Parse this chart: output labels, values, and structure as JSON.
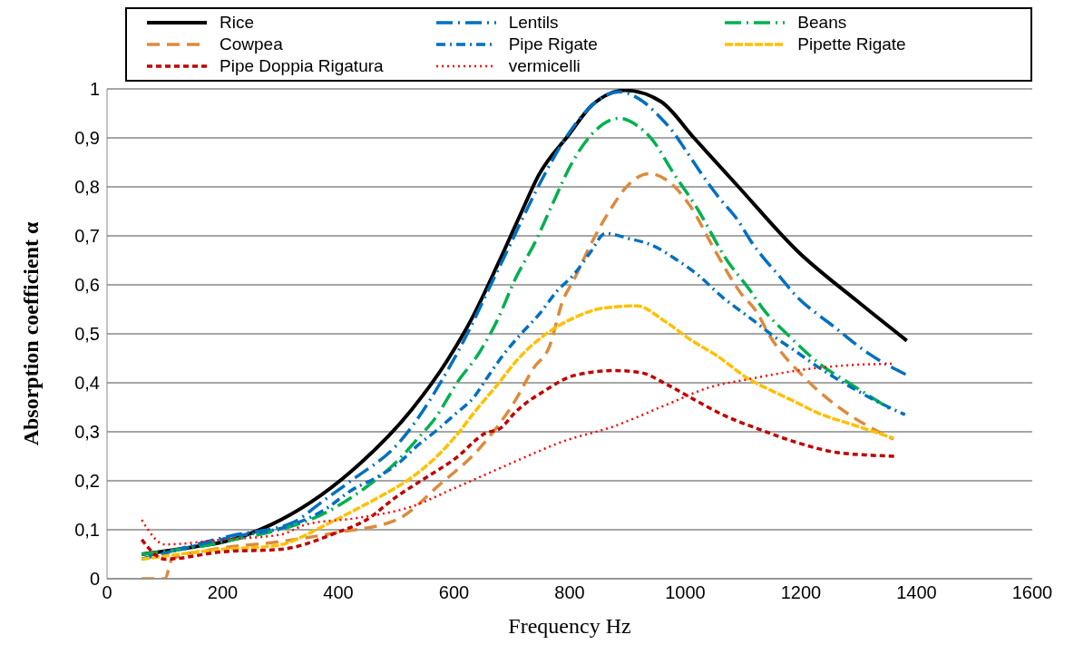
{
  "chart_data": {
    "type": "line",
    "xlabel": "Frequency Hz",
    "ylabel": "Absorption  coefficient α",
    "xlim": [
      0,
      1600
    ],
    "xticks": [
      0,
      200,
      400,
      600,
      800,
      1000,
      1200,
      1400,
      1600
    ],
    "ylim": [
      0,
      1
    ],
    "yticks": [
      {
        "value": 0,
        "label": "0"
      },
      {
        "value": 0.1,
        "label": "0,1"
      },
      {
        "value": 0.2,
        "label": "0,2"
      },
      {
        "value": 0.3,
        "label": "0,3"
      },
      {
        "value": 0.4,
        "label": "0,4"
      },
      {
        "value": 0.5,
        "label": "0,5"
      },
      {
        "value": 0.6,
        "label": "0,6"
      },
      {
        "value": 0.7,
        "label": "0,7"
      },
      {
        "value": 0.8,
        "label": "0,8"
      },
      {
        "value": 0.9,
        "label": "0,9"
      },
      {
        "value": 1,
        "label": "1"
      }
    ],
    "grid": "y",
    "legend": "top",
    "marker": "none",
    "series": [
      {
        "name": "Rice",
        "color": "#000000",
        "line_style": "solid",
        "x": [
          60,
          150,
          200,
          283,
          422,
          526,
          587,
          629,
          675,
          715,
          746,
          799,
          839,
          896,
          958,
          1015,
          1092,
          1193,
          1297,
          1383
        ],
        "values": [
          0.05,
          0.065,
          0.075,
          0.11,
          0.219,
          0.344,
          0.443,
          0.527,
          0.64,
          0.744,
          0.823,
          0.907,
          0.967,
          0.997,
          0.974,
          0.9,
          0.8,
          0.67,
          0.567,
          0.486
        ]
      },
      {
        "name": "Lentils",
        "color": "#0070c0",
        "line_style": "dashed",
        "x": [
          60,
          216,
          320,
          375,
          422,
          505,
          603,
          680,
          762,
          793,
          886,
          927,
          954,
          979,
          1000,
          1038,
          1059,
          1092,
          1113,
          1136,
          1161,
          1195,
          1232,
          1260,
          1289,
          1318,
          1383
        ],
        "values": [
          0.04,
          0.088,
          0.114,
          0.16,
          0.2,
          0.278,
          0.455,
          0.64,
          0.837,
          0.9,
          0.994,
          0.974,
          0.945,
          0.912,
          0.876,
          0.81,
          0.777,
          0.73,
          0.69,
          0.654,
          0.62,
          0.573,
          0.537,
          0.512,
          0.484,
          0.459,
          0.416
        ]
      },
      {
        "name": "Beans",
        "color": "#00b050",
        "line_style": "dashed",
        "x": [
          60,
          200,
          397,
          448,
          500,
          541,
          567,
          607,
          644,
          675,
          706,
          742,
          770,
          804,
          838,
          886,
          917,
          943,
          979,
          1020,
          1071,
          1113,
          1133,
          1180,
          1232,
          1288,
          1355
        ],
        "values": [
          0.05,
          0.075,
          0.147,
          0.187,
          0.238,
          0.291,
          0.327,
          0.403,
          0.462,
          0.528,
          0.612,
          0.691,
          0.764,
          0.849,
          0.907,
          0.94,
          0.925,
          0.896,
          0.829,
          0.757,
          0.652,
          0.587,
          0.553,
          0.495,
          0.439,
          0.396,
          0.346
        ]
      },
      {
        "name": "Cowpea",
        "color": "#dd8a3e",
        "line_style": "dashed",
        "x": [
          60,
          100,
          113,
          190,
          294,
          397,
          500,
          576,
          644,
          706,
          737,
          765,
          788,
          808,
          835,
          876,
          896,
          938,
          969,
          1009,
          1049,
          1096,
          1122,
          1147,
          1204,
          1270,
          1360
        ],
        "values": [
          0,
          0,
          0.041,
          0.061,
          0.075,
          0.094,
          0.12,
          0.193,
          0.266,
          0.364,
          0.429,
          0.474,
          0.567,
          0.612,
          0.679,
          0.764,
          0.797,
          0.827,
          0.813,
          0.76,
          0.675,
          0.583,
          0.547,
          0.494,
          0.413,
          0.346,
          0.285
        ]
      },
      {
        "name": "Pipe Rigate",
        "color": "#0070c0",
        "line_style": "dashed",
        "x": [
          60,
          216,
          320,
          375,
          422,
          474,
          500,
          541,
          567,
          603,
          634,
          660,
          684,
          716,
          748,
          778,
          808,
          835,
          862,
          901,
          946,
          984,
          1020,
          1066,
          1117,
          1154,
          1190,
          1226,
          1288,
          1340,
          1380
        ],
        "values": [
          0.04,
          0.085,
          0.11,
          0.14,
          0.18,
          0.212,
          0.232,
          0.276,
          0.3,
          0.337,
          0.37,
          0.415,
          0.455,
          0.5,
          0.541,
          0.587,
          0.622,
          0.665,
          0.705,
          0.695,
          0.679,
          0.652,
          0.622,
          0.573,
          0.528,
          0.494,
          0.465,
          0.435,
          0.39,
          0.357,
          0.335
        ]
      },
      {
        "name": "Pipette Rigate",
        "color": "#ffc000",
        "line_style": "dashed",
        "x": [
          60,
          200,
          294,
          375,
          428,
          474,
          526,
          567,
          603,
          638,
          675,
          711,
          762,
          808,
          861,
          917,
          963,
          1009,
          1055,
          1108,
          1149,
          1185,
          1232,
          1288,
          1360
        ],
        "values": [
          0.04,
          0.06,
          0.068,
          0.108,
          0.14,
          0.169,
          0.206,
          0.246,
          0.291,
          0.344,
          0.396,
          0.449,
          0.502,
          0.533,
          0.553,
          0.557,
          0.527,
          0.488,
          0.455,
          0.409,
          0.384,
          0.364,
          0.337,
          0.315,
          0.287
        ]
      },
      {
        "name": "Pipe Doppia Rigatura",
        "color": "#c00000",
        "line_style": "dashed",
        "x": [
          60,
          100,
          200,
          300,
          397,
          448,
          500,
          551,
          603,
          654,
          680,
          706,
          757,
          808,
          876,
          922,
          969,
          1015,
          1066,
          1128,
          1193,
          1261,
          1323,
          1363
        ],
        "values": [
          0.08,
          0.04,
          0.055,
          0.06,
          0.094,
          0.12,
          0.167,
          0.206,
          0.246,
          0.297,
          0.307,
          0.34,
          0.384,
          0.415,
          0.425,
          0.421,
          0.396,
          0.366,
          0.334,
          0.305,
          0.278,
          0.258,
          0.252,
          0.25
        ]
      },
      {
        "name": "vermicelli",
        "color": "#ff0000",
        "line_style": "dotted",
        "x": [
          60,
          100,
          200,
          300,
          345,
          433,
          526,
          603,
          680,
          742,
          783,
          876,
          969,
          1040,
          1117,
          1193,
          1272,
          1360
        ],
        "values": [
          0.12,
          0.07,
          0.08,
          0.09,
          0.111,
          0.124,
          0.147,
          0.186,
          0.226,
          0.258,
          0.278,
          0.311,
          0.356,
          0.39,
          0.409,
          0.425,
          0.435,
          0.439
        ]
      }
    ]
  }
}
